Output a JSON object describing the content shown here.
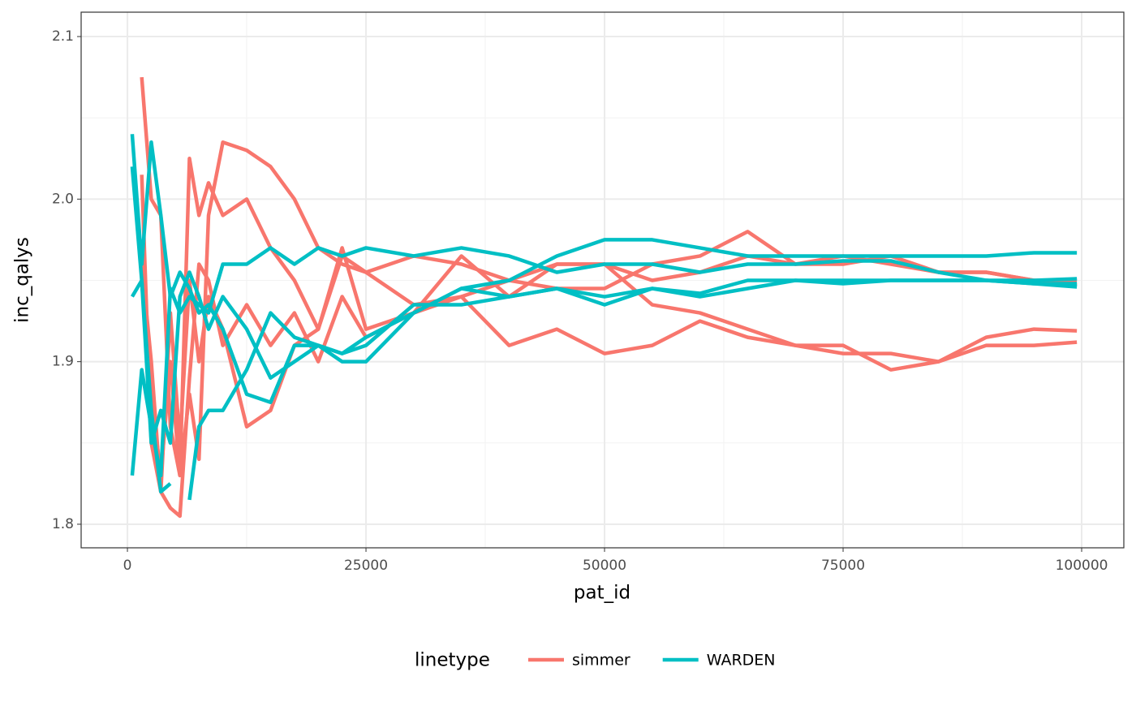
{
  "chart_data": {
    "type": "line",
    "xlabel": "pat_id",
    "ylabel": "inc_qalys",
    "legend_title": "linetype",
    "legend_position": "bottom",
    "x": [
      500,
      1500,
      2500,
      3500,
      4500,
      5500,
      6500,
      7500,
      8500,
      10000,
      12500,
      15000,
      17500,
      20000,
      22500,
      25000,
      30000,
      35000,
      40000,
      45000,
      50000,
      55000,
      60000,
      65000,
      70000,
      75000,
      80000,
      85000,
      90000,
      95000,
      99500
    ],
    "series": [
      {
        "name": "simmer",
        "color": "#F8766D",
        "values": [
          null,
          2.075,
          2.0,
          1.99,
          1.86,
          1.83,
          1.88,
          1.84,
          1.99,
          2.035,
          2.03,
          2.02,
          2.0,
          1.97,
          1.96,
          1.955,
          1.935,
          1.94,
          1.95,
          1.945,
          1.945,
          1.96,
          1.965,
          1.98,
          1.96,
          1.965,
          1.96,
          1.955,
          1.955,
          1.95,
          1.947
        ]
      },
      {
        "name": "simmer",
        "color": "#F8766D",
        "values": [
          null,
          2.015,
          1.85,
          1.82,
          1.81,
          1.805,
          1.89,
          1.96,
          1.95,
          1.91,
          1.935,
          1.91,
          1.93,
          1.9,
          1.94,
          1.915,
          1.93,
          1.94,
          1.91,
          1.92,
          1.905,
          1.91,
          1.925,
          1.915,
          1.91,
          1.91,
          1.895,
          1.9,
          1.915,
          1.92,
          1.919
        ]
      },
      {
        "name": "simmer",
        "color": "#F8766D",
        "values": [
          null,
          1.95,
          1.88,
          1.83,
          1.9,
          1.83,
          2.025,
          1.99,
          2.01,
          1.99,
          2.0,
          1.97,
          1.95,
          1.92,
          1.965,
          1.955,
          1.965,
          1.96,
          1.95,
          1.96,
          1.96,
          1.935,
          1.93,
          1.92,
          1.91,
          1.905,
          1.905,
          1.9,
          1.91,
          1.91,
          1.912
        ]
      },
      {
        "name": "simmer",
        "color": "#F8766D",
        "values": [
          null,
          1.96,
          1.9,
          1.82,
          1.93,
          1.85,
          1.95,
          1.9,
          1.94,
          1.92,
          1.86,
          1.87,
          1.91,
          1.92,
          1.97,
          1.92,
          1.93,
          1.965,
          1.94,
          1.96,
          1.96,
          1.95,
          1.955,
          1.965,
          1.96,
          1.96,
          1.965,
          1.955,
          1.955,
          1.95,
          1.95
        ]
      },
      {
        "name": "WARDEN",
        "color": "#00BFC4",
        "values": [
          2.04,
          1.96,
          2.035,
          1.99,
          1.94,
          1.955,
          1.945,
          1.93,
          1.935,
          1.92,
          1.88,
          1.875,
          1.91,
          1.91,
          1.905,
          1.915,
          1.93,
          1.945,
          1.95,
          1.965,
          1.975,
          1.975,
          1.97,
          1.965,
          1.965,
          1.965,
          1.965,
          1.965,
          1.965,
          1.967,
          1.967
        ]
      },
      {
        "name": "WARDEN",
        "color": "#00BFC4",
        "values": [
          1.83,
          1.895,
          1.86,
          1.83,
          1.945,
          1.93,
          1.94,
          1.935,
          1.93,
          1.96,
          1.96,
          1.97,
          1.96,
          1.97,
          1.965,
          1.97,
          1.965,
          1.97,
          1.965,
          1.955,
          1.96,
          1.96,
          1.955,
          1.96,
          1.96,
          1.962,
          1.962,
          1.955,
          1.95,
          1.95,
          1.951
        ]
      },
      {
        "name": "WARDEN",
        "color": "#00BFC4",
        "values": [
          1.94,
          1.95,
          1.87,
          1.82,
          1.825,
          null,
          1.815,
          1.86,
          1.87,
          1.87,
          1.895,
          1.93,
          1.915,
          1.91,
          1.905,
          1.91,
          1.935,
          1.935,
          1.94,
          1.945,
          1.94,
          1.945,
          1.942,
          1.95,
          1.95,
          1.95,
          1.95,
          1.95,
          1.95,
          1.948,
          1.946
        ]
      },
      {
        "name": "WARDEN",
        "color": "#00BFC4",
        "values": [
          2.02,
          1.95,
          1.85,
          1.87,
          1.85,
          1.94,
          1.955,
          1.94,
          1.92,
          1.94,
          1.92,
          1.89,
          1.9,
          1.91,
          1.9,
          1.9,
          1.93,
          1.945,
          1.94,
          1.945,
          1.935,
          1.945,
          1.94,
          1.945,
          1.95,
          1.948,
          1.95,
          1.95,
          1.95,
          1.948,
          1.948
        ]
      }
    ],
    "xlim": [
      -4850,
      104420
    ],
    "ylim": [
      1.7855,
      2.115
    ],
    "xticks": [
      0,
      25000,
      50000,
      75000,
      100000
    ],
    "yticks": [
      1.8,
      1.9,
      {
        "value": 2,
        "label": "2.0"
      },
      2.1
    ],
    "xminor": [
      12500,
      37500,
      62500,
      87500
    ],
    "yminor": [
      1.85,
      1.95,
      2.05
    ],
    "grid": true
  }
}
